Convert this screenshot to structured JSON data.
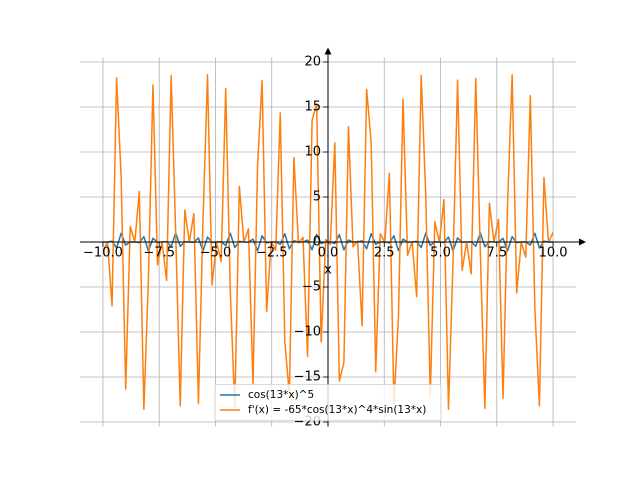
{
  "chart_data": {
    "type": "line",
    "xlabel": "x",
    "x": [
      -10,
      -9.798,
      -9.596,
      -9.394,
      -9.192,
      -8.99,
      -8.788,
      -8.586,
      -8.384,
      -8.182,
      -7.98,
      -7.778,
      -7.576,
      -7.374,
      -7.172,
      -6.97,
      -6.768,
      -6.566,
      -6.364,
      -6.162,
      -5.96,
      -5.758,
      -5.556,
      -5.354,
      -5.152,
      -4.949,
      -4.747,
      -4.545,
      -4.343,
      -4.141,
      -3.939,
      -3.737,
      -3.535,
      -3.333,
      -3.131,
      -2.929,
      -2.727,
      -2.525,
      -2.323,
      -2.121,
      -1.919,
      -1.717,
      -1.515,
      -1.313,
      -1.111,
      -0.909,
      -0.707,
      -0.505,
      -0.303,
      -0.101,
      0.101,
      0.303,
      0.505,
      0.707,
      0.909,
      1.111,
      1.313,
      1.515,
      1.717,
      1.919,
      2.121,
      2.323,
      2.525,
      2.727,
      2.929,
      3.131,
      3.333,
      3.535,
      3.737,
      3.939,
      4.141,
      4.343,
      4.545,
      4.747,
      4.949,
      5.152,
      5.354,
      5.556,
      5.758,
      5.96,
      6.162,
      6.364,
      6.566,
      6.768,
      6.97,
      7.172,
      7.374,
      7.576,
      7.778,
      7.98,
      8.182,
      8.384,
      8.586,
      8.788,
      8.99,
      9.192,
      9.394,
      9.596,
      9.798,
      10
    ],
    "series": [
      {
        "name": "cos(13*x)^5",
        "color": "#1f77b4",
        "values": [
          -0.007,
          0,
          0.084,
          -0.662,
          0.968,
          -0.345,
          0.012,
          0,
          -0.06,
          0.591,
          -0.99,
          0.41,
          -0.02,
          0,
          0.041,
          -0.52,
          1.0,
          -0.478,
          0.032,
          0,
          -0.027,
          0.45,
          -0.997,
          0.548,
          -0.048,
          0,
          0.016,
          -0.383,
          0.982,
          -0.62,
          0.069,
          0,
          -0.01,
          0.32,
          -0.956,
          0.689,
          -0.095,
          0,
          0.005,
          -0.262,
          0.918,
          -0.756,
          0.128,
          0,
          -0.002,
          0.21,
          -0.871,
          0.818,
          -0.167,
          0.001,
          0.001,
          -0.165,
          0.815,
          -0.873,
          0.213,
          -0.003,
          0,
          0.126,
          -0.753,
          0.92,
          -0.265,
          0.005,
          0,
          -0.094,
          0.686,
          -0.957,
          0.323,
          -0.01,
          0,
          0.067,
          -0.616,
          0.983,
          -0.386,
          0.017,
          0,
          -0.047,
          0.545,
          -0.997,
          0.453,
          -0.027,
          0,
          0.032,
          -0.475,
          0.999,
          -0.523,
          0.041,
          0,
          -0.02,
          0.406,
          -0.989,
          0.595,
          -0.061,
          0,
          0.012,
          -0.342,
          0.967,
          -0.665,
          0.085,
          0,
          -0.006
        ]
      },
      {
        "name": "f'(x) = -65*cos(13*x)^4*sin(13*x)",
        "color": "#ff7f0e",
        "values": [
          -1.1,
          0.02,
          -7.08,
          18.23,
          7.22,
          -16.34,
          1.72,
          0,
          5.62,
          -18.59,
          -4.16,
          17.44,
          -2.54,
          0,
          -4.27,
          18.49,
          0.96,
          -18.2,
          3.56,
          0,
          3.17,
          -17.94,
          2.26,
          18.58,
          -4.77,
          0,
          -2.18,
          17.03,
          -5.42,
          -18.5,
          6.17,
          -0.01,
          1.45,
          -15.8,
          8.4,
          17.95,
          -7.73,
          0.04,
          -0.9,
          14.35,
          -11.12,
          -16.9,
          9.39,
          -0.12,
          0.51,
          -12.72,
          13.5,
          15.37,
          -11.1,
          0.27,
          -0.26,
          11.02,
          -15.45,
          -13.39,
          12.81,
          -0.53,
          0.11,
          -9.3,
          16.96,
          11.0,
          -14.42,
          0.92,
          -0.04,
          7.64,
          -17.98,
          -8.26,
          15.88,
          -1.48,
          0.01,
          -6.08,
          18.52,
          5.26,
          -17.09,
          2.23,
          0,
          4.71,
          -18.57,
          -2.11,
          17.98,
          -3.17,
          0,
          -3.54,
          18.18,
          -1.12,
          -18.49,
          4.32,
          0,
          2.5,
          -17.39,
          4.32,
          18.58,
          -5.66,
          0,
          -1.69,
          16.27,
          -7.38,
          -18.2,
          7.16,
          -0.03,
          1.07
        ]
      }
    ],
    "xlim": [
      -11.02,
      11.02
    ],
    "ylim": [
      -20.5,
      20.5
    ],
    "xticks": [
      {
        "value": -10,
        "label": "−10.0"
      },
      {
        "value": -7.5,
        "label": "−7.5"
      },
      {
        "value": -5,
        "label": "−5.0"
      },
      {
        "value": -2.5,
        "label": "−2.5"
      },
      {
        "value": 0,
        "label": "0.0"
      },
      {
        "value": 2.5,
        "label": "2.5"
      },
      {
        "value": 5,
        "label": "5.0"
      },
      {
        "value": 7.5,
        "label": "7.5"
      },
      {
        "value": 10,
        "label": "10.0"
      }
    ],
    "yticks": [
      {
        "value": -20,
        "label": "−20"
      },
      {
        "value": -15,
        "label": "−15"
      },
      {
        "value": -10,
        "label": "−10"
      },
      {
        "value": -5,
        "label": "−5"
      },
      0,
      5,
      10,
      15,
      20
    ],
    "grid": true,
    "legend": "lower center"
  }
}
